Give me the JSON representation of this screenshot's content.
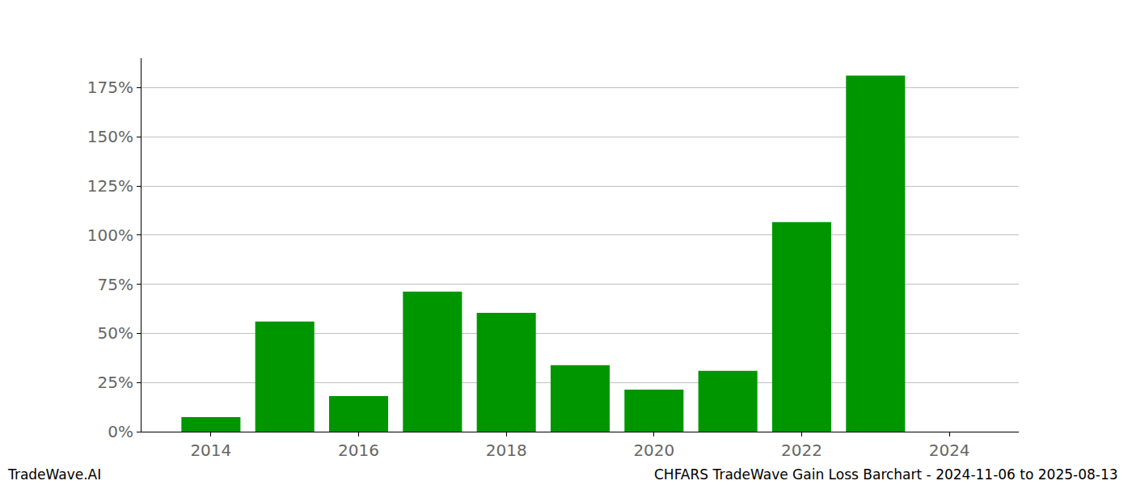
{
  "chart_data": {
    "type": "bar",
    "x": [
      2014,
      2015,
      2016,
      2017,
      2018,
      2019,
      2020,
      2021,
      2022,
      2023
    ],
    "values": [
      7.4,
      56,
      18.1,
      71.2,
      60.5,
      33.8,
      21.4,
      30.9,
      106.6,
      181.2
    ],
    "color": "#009600",
    "xlim": [
      2013.06,
      2024.94
    ],
    "xticks": [
      2014,
      2016,
      2018,
      2020,
      2022,
      2024
    ],
    "ylim": [
      0,
      190
    ],
    "yticks": [
      {
        "value": 0,
        "label": "0%"
      },
      {
        "value": 25,
        "label": "25%"
      },
      {
        "value": 50,
        "label": "50%"
      },
      {
        "value": 75,
        "label": "75%"
      },
      {
        "value": 100,
        "label": "100%"
      },
      {
        "value": 125,
        "label": "125%"
      },
      {
        "value": 150,
        "label": "150%"
      },
      {
        "value": 175,
        "label": "175%"
      }
    ],
    "grid": true,
    "annotations": [
      "TradeWave.AI",
      "CHFARS TradeWave Gain Loss Barchart - 2024-11-06 to 2025-08-13"
    ]
  }
}
